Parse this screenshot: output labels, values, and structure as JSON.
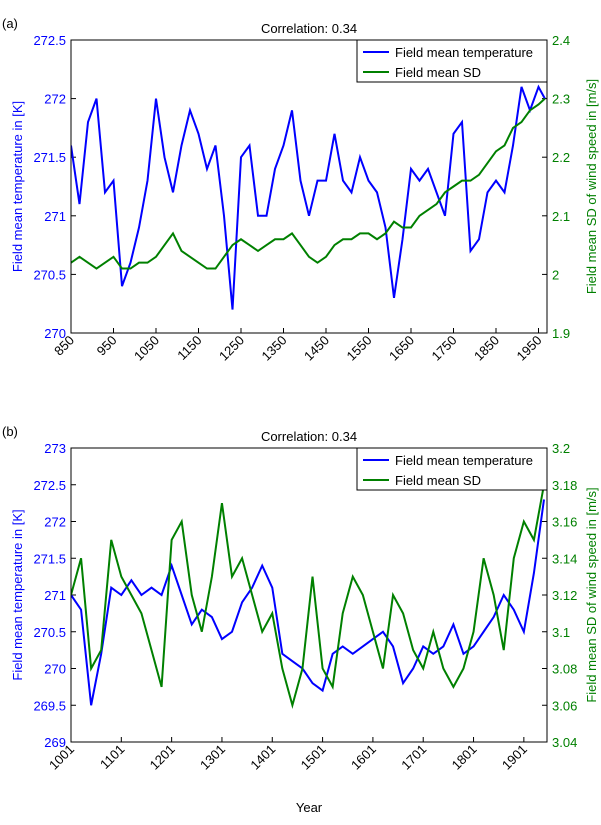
{
  "chart_data": [
    {
      "type": "line",
      "panel_label": "(a)",
      "title": "Correlation: 0.34",
      "ylabel": "Field mean temperature in [K]",
      "y2label": "Field mean SD of wind speed in [m/s]",
      "x": [
        850,
        870,
        890,
        910,
        930,
        950,
        970,
        990,
        1010,
        1030,
        1050,
        1070,
        1090,
        1110,
        1130,
        1150,
        1170,
        1190,
        1210,
        1230,
        1250,
        1270,
        1290,
        1310,
        1330,
        1350,
        1370,
        1390,
        1410,
        1430,
        1450,
        1470,
        1490,
        1510,
        1530,
        1550,
        1570,
        1590,
        1610,
        1630,
        1650,
        1670,
        1690,
        1710,
        1730,
        1750,
        1770,
        1790,
        1810,
        1830,
        1850,
        1870,
        1890,
        1910,
        1930,
        1950,
        1965
      ],
      "series": [
        {
          "name": "Field mean temperature",
          "color": "#0000ff",
          "axis": "y",
          "values": [
            271.6,
            271.1,
            271.8,
            272.0,
            271.2,
            271.3,
            270.4,
            270.6,
            270.9,
            271.3,
            272.0,
            271.5,
            271.2,
            271.6,
            271.9,
            271.7,
            271.4,
            271.6,
            271.0,
            270.2,
            271.5,
            271.6,
            271.0,
            271.0,
            271.4,
            271.6,
            271.9,
            271.3,
            271.0,
            271.3,
            271.3,
            271.7,
            271.3,
            271.2,
            271.5,
            271.3,
            271.2,
            270.9,
            270.3,
            270.8,
            271.4,
            271.3,
            271.4,
            271.2,
            271.0,
            271.7,
            271.8,
            270.7,
            270.8,
            271.2,
            271.3,
            271.2,
            271.6,
            272.1,
            271.9,
            272.1,
            272.0
          ]
        },
        {
          "name": "Field mean SD",
          "color": "#008000",
          "axis": "y2",
          "values": [
            2.02,
            2.03,
            2.02,
            2.01,
            2.02,
            2.03,
            2.01,
            2.01,
            2.02,
            2.02,
            2.03,
            2.05,
            2.07,
            2.04,
            2.03,
            2.02,
            2.01,
            2.01,
            2.03,
            2.05,
            2.06,
            2.05,
            2.04,
            2.05,
            2.06,
            2.06,
            2.07,
            2.05,
            2.03,
            2.02,
            2.03,
            2.05,
            2.06,
            2.06,
            2.07,
            2.07,
            2.06,
            2.07,
            2.09,
            2.08,
            2.08,
            2.1,
            2.11,
            2.12,
            2.14,
            2.15,
            2.16,
            2.16,
            2.17,
            2.19,
            2.21,
            2.22,
            2.25,
            2.26,
            2.28,
            2.29,
            2.3
          ]
        }
      ],
      "xlim": [
        850,
        1970
      ],
      "xticks": [
        850,
        950,
        1050,
        1150,
        1250,
        1350,
        1450,
        1550,
        1650,
        1750,
        1850,
        1950
      ],
      "ylim": [
        270,
        272.5
      ],
      "yticks": [
        270,
        270.5,
        271,
        271.5,
        272,
        272.5
      ],
      "y2lim": [
        1.9,
        2.4
      ],
      "y2ticks": [
        1.9,
        2,
        2.1,
        2.2,
        2.3,
        2.4
      ],
      "legend": "upper right"
    },
    {
      "type": "line",
      "panel_label": "(b)",
      "title": "Correlation: 0.34",
      "xlabel": "Year",
      "ylabel": "Field mean temperature in [K]",
      "y2label": "Field mean SD of wind speed in [m/s]",
      "x": [
        1001,
        1021,
        1041,
        1061,
        1081,
        1101,
        1121,
        1141,
        1161,
        1181,
        1201,
        1221,
        1241,
        1261,
        1281,
        1301,
        1321,
        1341,
        1361,
        1381,
        1401,
        1421,
        1441,
        1461,
        1481,
        1501,
        1521,
        1541,
        1561,
        1581,
        1601,
        1621,
        1641,
        1661,
        1681,
        1701,
        1721,
        1741,
        1761,
        1781,
        1801,
        1821,
        1841,
        1861,
        1881,
        1901,
        1921,
        1941
      ],
      "series": [
        {
          "name": "Field mean temperature",
          "color": "#0000ff",
          "axis": "y",
          "values": [
            271.0,
            270.8,
            269.5,
            270.2,
            271.1,
            271.0,
            271.2,
            271.0,
            271.1,
            271.0,
            271.4,
            271.0,
            270.6,
            270.8,
            270.7,
            270.4,
            270.5,
            270.9,
            271.1,
            271.4,
            271.1,
            270.2,
            270.1,
            270.0,
            269.8,
            269.7,
            270.2,
            270.3,
            270.2,
            270.3,
            270.4,
            270.5,
            270.3,
            269.8,
            270.0,
            270.3,
            270.2,
            270.3,
            270.6,
            270.2,
            270.3,
            270.5,
            270.7,
            271.0,
            270.8,
            270.5,
            271.3,
            272.3
          ]
        },
        {
          "name": "Field mean SD",
          "color": "#008000",
          "axis": "y2",
          "values": [
            3.12,
            3.14,
            3.08,
            3.09,
            3.15,
            3.13,
            3.12,
            3.11,
            3.09,
            3.07,
            3.15,
            3.16,
            3.12,
            3.1,
            3.13,
            3.17,
            3.13,
            3.14,
            3.12,
            3.1,
            3.11,
            3.08,
            3.06,
            3.08,
            3.13,
            3.08,
            3.07,
            3.11,
            3.13,
            3.12,
            3.1,
            3.08,
            3.12,
            3.11,
            3.09,
            3.08,
            3.1,
            3.08,
            3.07,
            3.08,
            3.1,
            3.14,
            3.12,
            3.09,
            3.14,
            3.16,
            3.15,
            3.18
          ]
        }
      ],
      "xlim": [
        1001,
        1947
      ],
      "xticks": [
        1001,
        1101,
        1201,
        1301,
        1401,
        1501,
        1601,
        1701,
        1801,
        1901
      ],
      "ylim": [
        269,
        273
      ],
      "yticks": [
        269,
        269.5,
        270,
        270.5,
        271,
        271.5,
        272,
        272.5,
        273
      ],
      "y2lim": [
        3.04,
        3.2
      ],
      "y2ticks": [
        3.04,
        3.06,
        3.08,
        3.1,
        3.12,
        3.14,
        3.16,
        3.18,
        3.2
      ],
      "legend": "upper right"
    }
  ]
}
